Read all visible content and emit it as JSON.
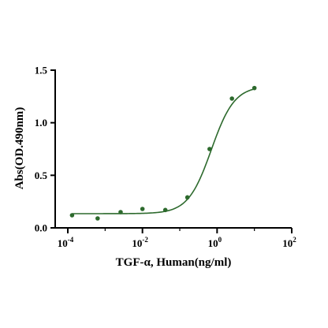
{
  "chart_data": {
    "type": "scatter",
    "title": "",
    "xlabel": "TGF-α, Human(ng/ml)",
    "ylabel": "Abs(OD.490nm)",
    "x_scale": "log",
    "xlim": [
      0.0001,
      100
    ],
    "ylim": [
      0,
      1.5
    ],
    "x_ticks": [
      {
        "value": 0.0001,
        "base": "10",
        "exp": "-4"
      },
      {
        "value": 0.01,
        "base": "10",
        "exp": "-2"
      },
      {
        "value": 1,
        "base": "10",
        "exp": "0"
      },
      {
        "value": 100,
        "base": "10",
        "exp": "2"
      }
    ],
    "y_ticks": [
      "0.0",
      "0.5",
      "1.0",
      "1.5"
    ],
    "grid": false,
    "legend": "none",
    "color": "#2d6a2d",
    "series": [
      {
        "points": [
          {
            "x": 0.00013,
            "y": 0.12
          },
          {
            "x": 0.00063,
            "y": 0.09
          },
          {
            "x": 0.0026,
            "y": 0.15
          },
          {
            "x": 0.01,
            "y": 0.18
          },
          {
            "x": 0.041,
            "y": 0.17
          },
          {
            "x": 0.16,
            "y": 0.29
          },
          {
            "x": 0.63,
            "y": 0.75
          },
          {
            "x": 2.5,
            "y": 1.23
          },
          {
            "x": 10,
            "y": 1.33
          }
        ],
        "fit": {
          "model": "4PL",
          "bottom": 0.135,
          "top": 1.35,
          "ec50": 0.7,
          "hill": 1.4
        }
      }
    ]
  }
}
